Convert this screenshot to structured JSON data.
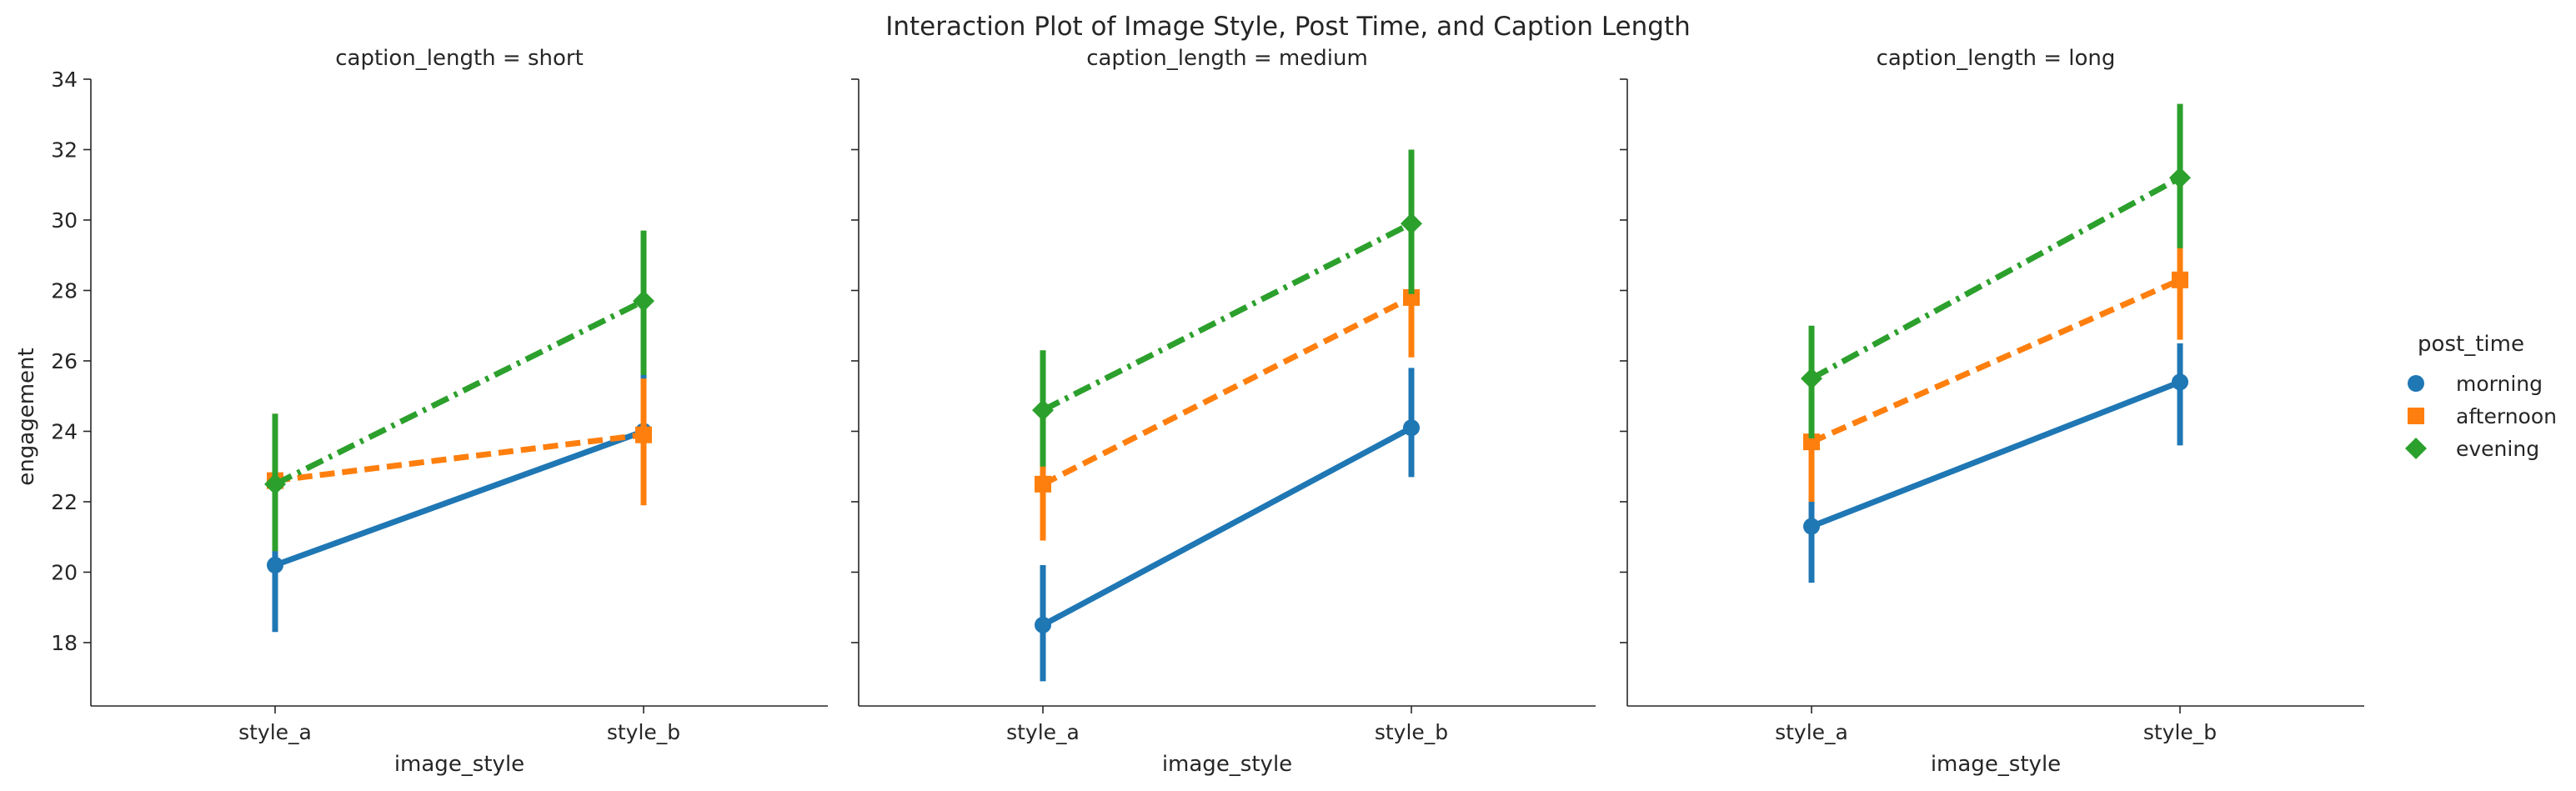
{
  "chart_data": {
    "type": "line",
    "title": "Interaction Plot of Image Style, Post Time, and Caption Length",
    "xlabel": "image_style",
    "ylabel": "engagement",
    "categories": [
      "style_a",
      "style_b"
    ],
    "ylim": [
      16.2,
      34
    ],
    "yticks": [
      18,
      20,
      22,
      24,
      26,
      28,
      30,
      32,
      34
    ],
    "grid": false,
    "legend": {
      "title": "post_time",
      "placement": "right",
      "entries": [
        "morning",
        "afternoon",
        "evening"
      ]
    },
    "colors": {
      "morning": "#1f77b4",
      "afternoon": "#ff7f0e",
      "evening": "#2ca02c"
    },
    "markers": {
      "morning": "circle",
      "afternoon": "square",
      "evening": "diamond"
    },
    "line_styles": {
      "morning": "solid",
      "afternoon": "dashed",
      "evening": "dashdot"
    },
    "panels": [
      {
        "title": "caption_length = short",
        "series": [
          {
            "name": "morning",
            "values": [
              20.2,
              24.0
            ],
            "ci_low": [
              18.3,
              22.0
            ],
            "ci_high": [
              22.1,
              25.9
            ]
          },
          {
            "name": "afternoon",
            "values": [
              22.6,
              23.9
            ],
            "ci_low": [
              20.6,
              21.9
            ],
            "ci_high": [
              24.5,
              25.5
            ]
          },
          {
            "name": "evening",
            "values": [
              22.5,
              27.7
            ],
            "ci_low": [
              20.6,
              25.6
            ],
            "ci_high": [
              24.5,
              29.7
            ]
          }
        ]
      },
      {
        "title": "caption_length = medium",
        "series": [
          {
            "name": "morning",
            "values": [
              18.5,
              24.1
            ],
            "ci_low": [
              16.9,
              22.7
            ],
            "ci_high": [
              20.2,
              25.8
            ]
          },
          {
            "name": "afternoon",
            "values": [
              22.5,
              27.8
            ],
            "ci_low": [
              20.9,
              26.1
            ],
            "ci_high": [
              24.1,
              29.4
            ]
          },
          {
            "name": "evening",
            "values": [
              24.6,
              29.9
            ],
            "ci_low": [
              23.0,
              27.9
            ],
            "ci_high": [
              26.3,
              32.0
            ]
          }
        ]
      },
      {
        "title": "caption_length = long",
        "series": [
          {
            "name": "morning",
            "values": [
              21.3,
              25.4
            ],
            "ci_low": [
              19.7,
              23.6
            ],
            "ci_high": [
              22.9,
              26.5
            ]
          },
          {
            "name": "afternoon",
            "values": [
              23.7,
              28.3
            ],
            "ci_low": [
              22.0,
              26.6
            ],
            "ci_high": [
              25.4,
              29.3
            ]
          },
          {
            "name": "evening",
            "values": [
              25.5,
              31.2
            ],
            "ci_low": [
              23.8,
              29.2
            ],
            "ci_high": [
              27.0,
              33.3
            ]
          }
        ]
      }
    ]
  }
}
